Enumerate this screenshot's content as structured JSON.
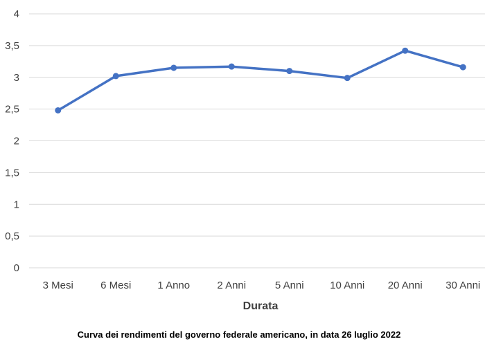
{
  "chart_data": {
    "type": "line",
    "categories": [
      "3 Mesi",
      "6 Mesi",
      "1 Anno",
      "2 Anni",
      "5 Anni",
      "10 Anni",
      "20 Anni",
      "30 Anni"
    ],
    "series": [
      {
        "values": [
          2.48,
          3.02,
          3.15,
          3.17,
          3.1,
          2.99,
          3.42,
          3.16
        ]
      }
    ],
    "xlabel": "Durata",
    "ylabel": "",
    "ylim": [
      0,
      4
    ],
    "yticks": [
      "0",
      "0,5",
      "1",
      "1,5",
      "2",
      "2,5",
      "3",
      "3,5",
      "4"
    ],
    "grid": true,
    "caption": "Curva dei rendimenti del governo federale americano, in data 26 luglio 2022",
    "colors": {
      "line": "#4472C4",
      "grid": "#D9D9D9"
    }
  }
}
